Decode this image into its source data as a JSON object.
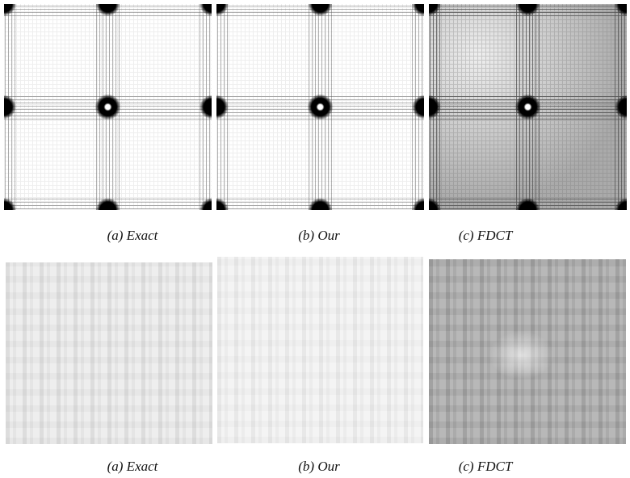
{
  "figure": {
    "rows": [
      {
        "captions": [
          "(a) Exact",
          "(b) Our",
          "(c) FDCT"
        ]
      },
      {
        "captions": [
          "(a) Exact",
          "(b) Our",
          "(c) FDCT"
        ]
      }
    ]
  }
}
